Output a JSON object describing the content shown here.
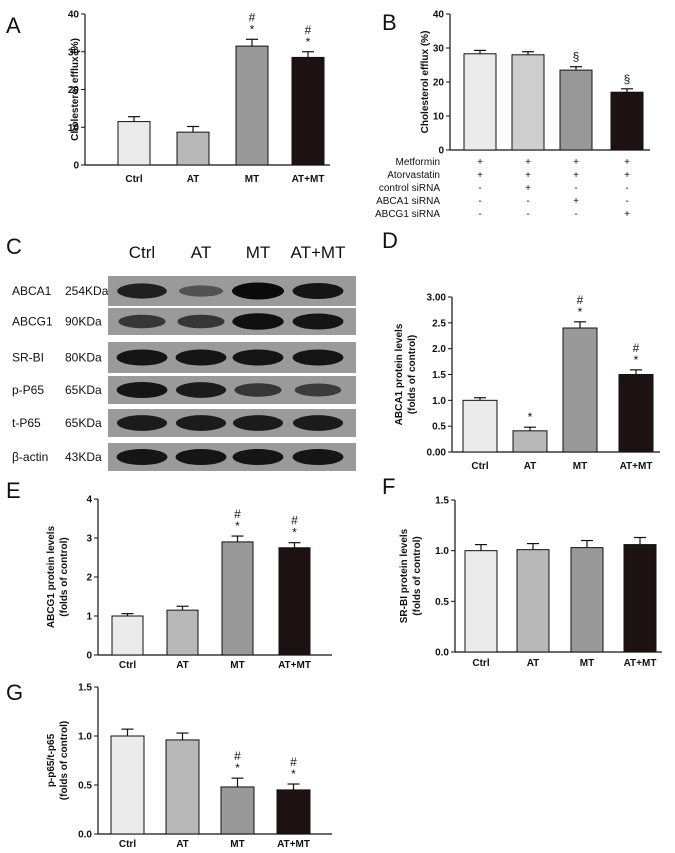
{
  "chart_data": [
    {
      "panel": "A",
      "type": "bar",
      "categories": [
        "Ctrl",
        "AT",
        "MT",
        "AT+MT"
      ],
      "values": [
        11.5,
        8.7,
        31.5,
        28.5
      ],
      "errors": [
        1.3,
        1.5,
        1.8,
        1.5
      ],
      "annotations": [
        "",
        "",
        "#\n*",
        "#\n*"
      ],
      "ylabel": "Cholesterol efflux (%)",
      "ylim": [
        0,
        40
      ],
      "yticks": [
        "0",
        "10",
        "20",
        "30",
        "40"
      ],
      "colors": [
        "#ebebeb",
        "#b8b8b8",
        "#999999",
        "#1c1212"
      ]
    },
    {
      "panel": "B",
      "type": "bar",
      "categories": [
        "",
        "",
        "",
        ""
      ],
      "values": [
        28.3,
        28.0,
        23.5,
        17.0
      ],
      "errors": [
        1.0,
        0.9,
        1.0,
        1.0
      ],
      "annotations": [
        "",
        "",
        "§",
        "§"
      ],
      "ylabel": "Cholesterol efflux (%)",
      "ylim": [
        0,
        40
      ],
      "yticks": [
        "0",
        "10",
        "20",
        "30",
        "40"
      ],
      "colors": [
        "#ebebeb",
        "#cfcfcf",
        "#999999",
        "#1c1212"
      ],
      "treatment_table": {
        "rows": [
          {
            "label": "Metformin",
            "values": [
              "+",
              "+",
              "+",
              "+"
            ]
          },
          {
            "label": "Atorvastatin",
            "values": [
              "+",
              "+",
              "+",
              "+"
            ]
          },
          {
            "label": "control siRNA",
            "values": [
              "-",
              "+",
              "-",
              "-"
            ]
          },
          {
            "label": "ABCA1 siRNA",
            "values": [
              "-",
              "-",
              "+",
              "-"
            ]
          },
          {
            "label": "ABCG1 siRNA",
            "values": [
              "-",
              "-",
              "-",
              "+"
            ]
          }
        ]
      }
    },
    {
      "panel": "D",
      "type": "bar",
      "categories": [
        "Ctrl",
        "AT",
        "MT",
        "AT+MT"
      ],
      "values": [
        1.0,
        0.41,
        2.4,
        1.5
      ],
      "errors": [
        0.05,
        0.07,
        0.12,
        0.09
      ],
      "annotations": [
        "",
        "*",
        "#\n*",
        "#\n*"
      ],
      "ylabel": "ABCA1 protein levels\n(folds of control)",
      "ylim": [
        0,
        3.0
      ],
      "yticks": [
        "0.00",
        "0.5",
        "1.0",
        "1.5",
        "2.0",
        "2.5",
        "3.00"
      ],
      "colors": [
        "#ebebeb",
        "#b8b8b8",
        "#999999",
        "#1c1212"
      ]
    },
    {
      "panel": "E",
      "type": "bar",
      "categories": [
        "Ctrl",
        "AT",
        "MT",
        "AT+MT"
      ],
      "values": [
        1.0,
        1.15,
        2.9,
        2.75
      ],
      "errors": [
        0.06,
        0.1,
        0.15,
        0.13
      ],
      "annotations": [
        "",
        "",
        "#\n*",
        "#\n*"
      ],
      "ylabel": "ABCG1 protein levels\n(folds of control)",
      "ylim": [
        0,
        4
      ],
      "yticks": [
        "0",
        "1",
        "2",
        "3",
        "4"
      ],
      "colors": [
        "#ebebeb",
        "#b8b8b8",
        "#999999",
        "#1c1212"
      ]
    },
    {
      "panel": "F",
      "type": "bar",
      "categories": [
        "Ctrl",
        "AT",
        "MT",
        "AT+MT"
      ],
      "values": [
        1.0,
        1.01,
        1.03,
        1.06
      ],
      "errors": [
        0.06,
        0.06,
        0.07,
        0.07
      ],
      "annotations": [
        "",
        "",
        "",
        ""
      ],
      "ylabel": "SR-BI protein levels\n(folds of control)",
      "ylim": [
        0,
        1.5
      ],
      "yticks": [
        "0.0",
        "0.5",
        "1.0",
        "1.5"
      ],
      "colors": [
        "#ebebeb",
        "#b8b8b8",
        "#999999",
        "#1c1212"
      ]
    },
    {
      "panel": "G",
      "type": "bar",
      "categories": [
        "Ctrl",
        "AT",
        "MT",
        "AT+MT"
      ],
      "values": [
        1.0,
        0.96,
        0.48,
        0.45
      ],
      "errors": [
        0.07,
        0.07,
        0.09,
        0.06
      ],
      "annotations": [
        "",
        "",
        "#\n*",
        "#\n*"
      ],
      "ylabel": "p-p65/t-p65\n(folds of control)",
      "ylim": [
        0,
        1.5
      ],
      "yticks": [
        "0.0",
        "0.5",
        "1.0",
        "1.5"
      ],
      "colors": [
        "#ebebeb",
        "#b8b8b8",
        "#999999",
        "#1c1212"
      ]
    }
  ],
  "panel_labels": [
    "A",
    "B",
    "C",
    "D",
    "E",
    "F",
    "G"
  ],
  "blot": {
    "panel": "C",
    "columns": [
      "Ctrl",
      "AT",
      "MT",
      "AT+MT"
    ],
    "rows": [
      {
        "protein": "ABCA1",
        "size": "254KDa",
        "intensity": [
          0.8,
          0.35,
          1.0,
          0.9
        ]
      },
      {
        "protein": "ABCG1",
        "size": "90KDa",
        "intensity": [
          0.6,
          0.6,
          0.95,
          0.9
        ]
      },
      {
        "protein": "SR-BI",
        "size": "80KDa",
        "intensity": [
          0.9,
          0.9,
          0.9,
          0.9
        ]
      },
      {
        "protein": "p-P65",
        "size": "65KDa",
        "intensity": [
          0.9,
          0.85,
          0.6,
          0.55
        ]
      },
      {
        "protein": "t-P65",
        "size": "65KDa",
        "intensity": [
          0.85,
          0.85,
          0.85,
          0.85
        ]
      },
      {
        "protein": "β-actin",
        "size": "43KDa",
        "intensity": [
          0.9,
          0.9,
          0.9,
          0.9
        ]
      }
    ]
  }
}
